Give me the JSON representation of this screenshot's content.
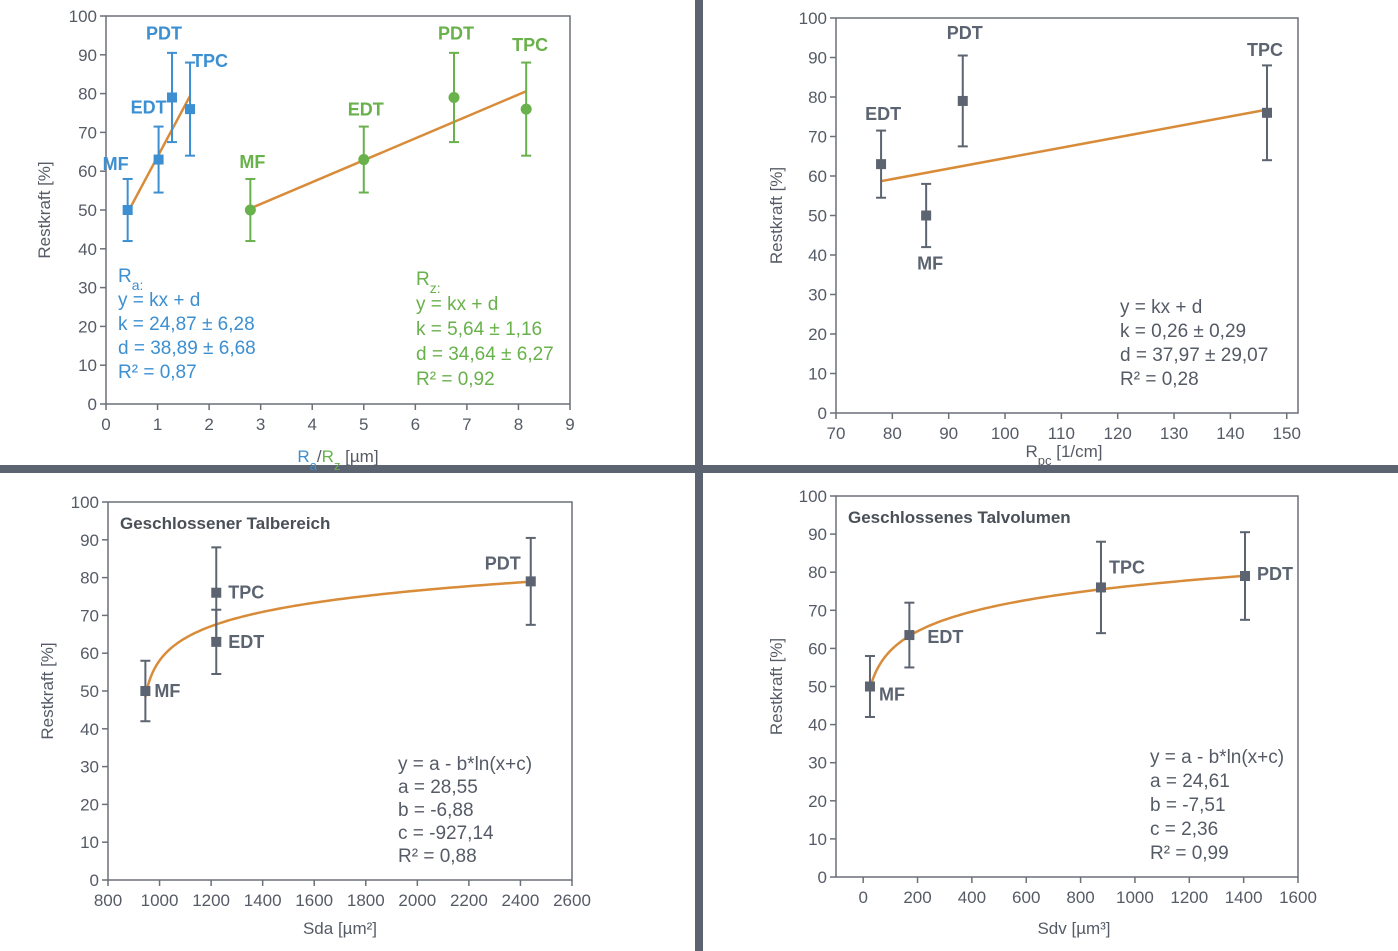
{
  "colors": {
    "divider": "#5b6470",
    "axis": "#6b7079",
    "gray_series": "#5b6470",
    "blue_series": "#3c8fd1",
    "green_series": "#68b14b",
    "fit_line": "#d88c3a",
    "text_gray": "#555b66"
  },
  "chart_data": [
    {
      "type": "scatter",
      "title": "",
      "xlabel": "",
      "xlabel_parts": [
        "R",
        "a",
        "/",
        "R",
        "z",
        " [µm]"
      ],
      "ylabel": "Restkraft [%]",
      "xlim": [
        0,
        9
      ],
      "ylim": [
        0,
        100
      ],
      "xticks": [
        0,
        1,
        2,
        3,
        4,
        5,
        6,
        7,
        8,
        9
      ],
      "yticks": [
        0,
        10,
        20,
        30,
        40,
        50,
        60,
        70,
        80,
        90,
        100
      ],
      "series": [
        {
          "name": "Ra",
          "marker": "square",
          "points": [
            {
              "label": "MF",
              "x": 0.42,
              "y": 50,
              "err": 8
            },
            {
              "label": "EDT",
              "x": 1.02,
              "y": 63,
              "err": 8.5
            },
            {
              "label": "PDT",
              "x": 1.28,
              "y": 79,
              "err": 11.5
            },
            {
              "label": "TPC",
              "x": 1.63,
              "y": 76,
              "err": 12
            }
          ],
          "fit": {
            "x": [
              0.42,
              1.63
            ],
            "y": [
              49.3,
              79.4
            ]
          },
          "equation": [
            "y = kx + d",
            "k = 24,87 ± 6,28",
            "d = 38,89 ± 6,68",
            "R² = 0,87"
          ],
          "equation_title": "Ra:"
        },
        {
          "name": "Rz",
          "marker": "circle",
          "points": [
            {
              "label": "MF",
              "x": 2.8,
              "y": 50,
              "err": 8
            },
            {
              "label": "EDT",
              "x": 5.0,
              "y": 63,
              "err": 8.5
            },
            {
              "label": "PDT",
              "x": 6.75,
              "y": 79,
              "err": 11.5
            },
            {
              "label": "TPC",
              "x": 8.15,
              "y": 76,
              "err": 12
            }
          ],
          "fit": {
            "x": [
              2.8,
              8.15
            ],
            "y": [
              50.4,
              80.6
            ]
          },
          "equation": [
            "y = kx + d",
            "k = 5,64 ± 1,16",
            "d = 34,64 ± 6,27",
            "R² = 0,92"
          ],
          "equation_title": "Rz:"
        }
      ]
    },
    {
      "type": "scatter",
      "title": "",
      "xlabel": "",
      "xlabel_parts": [
        "R",
        "pc",
        " [1/cm]"
      ],
      "ylabel": "Restkraft [%]",
      "xlim": [
        70,
        152
      ],
      "ylim": [
        0,
        100
      ],
      "xticks": [
        70,
        80,
        90,
        100,
        110,
        120,
        130,
        140,
        150
      ],
      "yticks": [
        0,
        10,
        20,
        30,
        40,
        50,
        60,
        70,
        80,
        90,
        100
      ],
      "series": [
        {
          "name": "",
          "marker": "square",
          "points": [
            {
              "label": "EDT",
              "x": 78,
              "y": 63,
              "err": 8.5
            },
            {
              "label": "MF",
              "x": 86,
              "y": 50,
              "err": 8
            },
            {
              "label": "PDT",
              "x": 92.5,
              "y": 79,
              "err": 11.5
            },
            {
              "label": "TPC",
              "x": 146.5,
              "y": 76,
              "err": 12
            }
          ],
          "fit": {
            "x": [
              78,
              146.5
            ],
            "y": [
              58.7,
              76.8
            ]
          },
          "equation": [
            "y = kx + d",
            "k = 0,26 ± 0,29",
            "d = 37,97 ± 29,07",
            "R² = 0,28"
          ]
        }
      ]
    },
    {
      "type": "scatter",
      "title": "Geschlossener Talbereich",
      "xlabel": "Sda [µm²]",
      "ylabel": "Restkraft [%]",
      "xlim": [
        800,
        2600
      ],
      "ylim": [
        0,
        100
      ],
      "xticks": [
        800,
        1000,
        1200,
        1400,
        1600,
        1800,
        2000,
        2200,
        2400,
        2600
      ],
      "yticks": [
        0,
        10,
        20,
        30,
        40,
        50,
        60,
        70,
        80,
        90,
        100
      ],
      "series": [
        {
          "name": "",
          "marker": "square",
          "points": [
            {
              "label": "MF",
              "x": 945,
              "y": 50,
              "err": 8
            },
            {
              "label": "TPC",
              "x": 1220,
              "y": 76,
              "err": 12
            },
            {
              "label": "EDT",
              "x": 1220,
              "y": 63,
              "err": 8.5
            },
            {
              "label": "PDT",
              "x": 2440,
              "y": 79,
              "err": 11.5
            }
          ],
          "fit_log": {
            "a": 28.55,
            "b": -6.88,
            "c": -927.14,
            "x_from": 945,
            "x_to": 2440
          },
          "equation": [
            "y = a - b*ln(x+c)",
            "a = 28,55",
            "b = -6,88",
            "c = -927,14",
            "R² = 0,88"
          ]
        }
      ]
    },
    {
      "type": "scatter",
      "title": "Geschlossenes Talvolumen",
      "xlabel": "Sdv [µm³]",
      "ylabel": "Restkraft [%]",
      "xlim": [
        -100,
        1600
      ],
      "ylim": [
        0,
        100
      ],
      "xticks": [
        0,
        200,
        400,
        600,
        800,
        1000,
        1200,
        1400,
        1600
      ],
      "yticks": [
        0,
        10,
        20,
        30,
        40,
        50,
        60,
        70,
        80,
        90,
        100
      ],
      "series": [
        {
          "name": "",
          "marker": "square",
          "points": [
            {
              "label": "MF",
              "x": 25,
              "y": 50,
              "err": 8
            },
            {
              "label": "EDT",
              "x": 170,
              "y": 63.5,
              "err": 8.5
            },
            {
              "label": "TPC",
              "x": 875,
              "y": 76,
              "err": 12
            },
            {
              "label": "PDT",
              "x": 1405,
              "y": 79,
              "err": 11.5
            }
          ],
          "fit_log": {
            "a": 24.61,
            "b": -7.51,
            "c": 2.36,
            "x_from": 25,
            "x_to": 1405
          },
          "equation": [
            "y = a - b*ln(x+c)",
            "a = 24,61",
            "b = -7,51",
            "c = 2,36",
            "R² = 0,99"
          ]
        }
      ]
    }
  ]
}
